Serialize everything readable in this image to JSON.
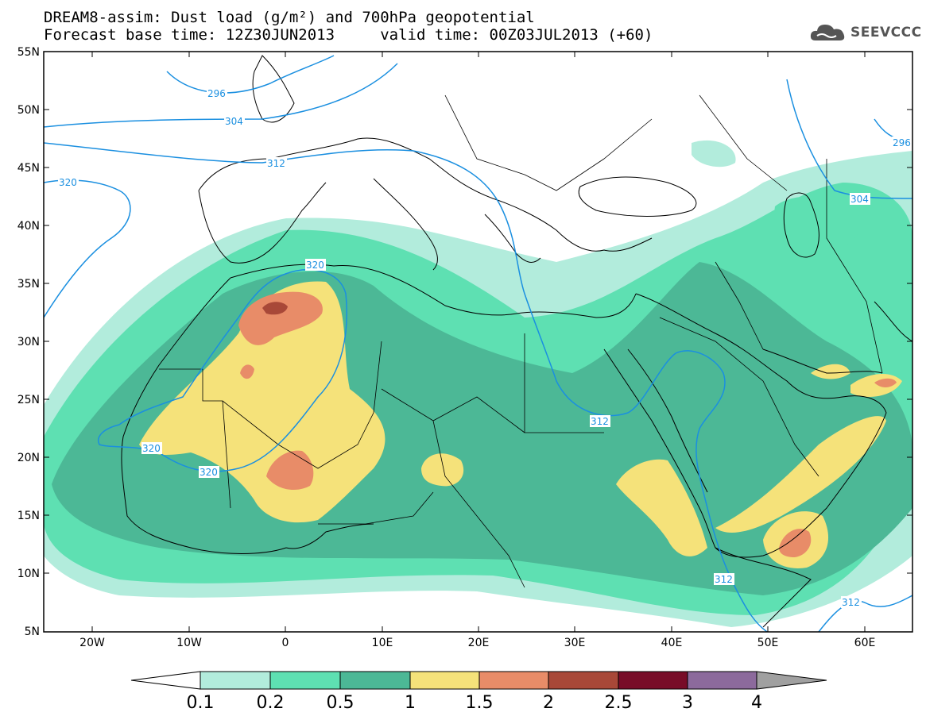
{
  "header": {
    "line1": "DREAM8-assim: Dust load (g/m²) and 700hPa geopotential",
    "line2": "Forecast base time: 12Z30JUN2013     valid time: 00Z03JUL2013 (+60)"
  },
  "logo": {
    "text": "SEEVCCC",
    "icon": "cloud-icon"
  },
  "axes": {
    "lat_labels": [
      "55N",
      "50N",
      "45N",
      "40N",
      "35N",
      "30N",
      "25N",
      "20N",
      "15N",
      "10N",
      "5N"
    ],
    "lon_labels": [
      "20W",
      "10W",
      "0",
      "10E",
      "20E",
      "30E",
      "40E",
      "50E",
      "60E"
    ]
  },
  "contours": {
    "color": "#1a8fe0",
    "labels": [
      "296",
      "304",
      "312",
      "320",
      "320",
      "320",
      "320",
      "312",
      "312",
      "312",
      "304",
      "296"
    ]
  },
  "colorbar": {
    "ticks": [
      "0.1",
      "0.2",
      "0.5",
      "1",
      "1.5",
      "2",
      "2.5",
      "3",
      "4"
    ],
    "colors": [
      "#ffffff",
      "#b2ecdc",
      "#5ee0b2",
      "#4cb896",
      "#f5e27a",
      "#e88c68",
      "#a84838",
      "#780c28",
      "#8c6a9c",
      "#a0a0a0"
    ]
  },
  "dust_colors": {
    "very_light": "#b2ecdc",
    "light": "#5ee0b2",
    "medium": "#4cb896",
    "yellow": "#f5e27a",
    "orange": "#e88c68",
    "brown": "#a84838"
  }
}
